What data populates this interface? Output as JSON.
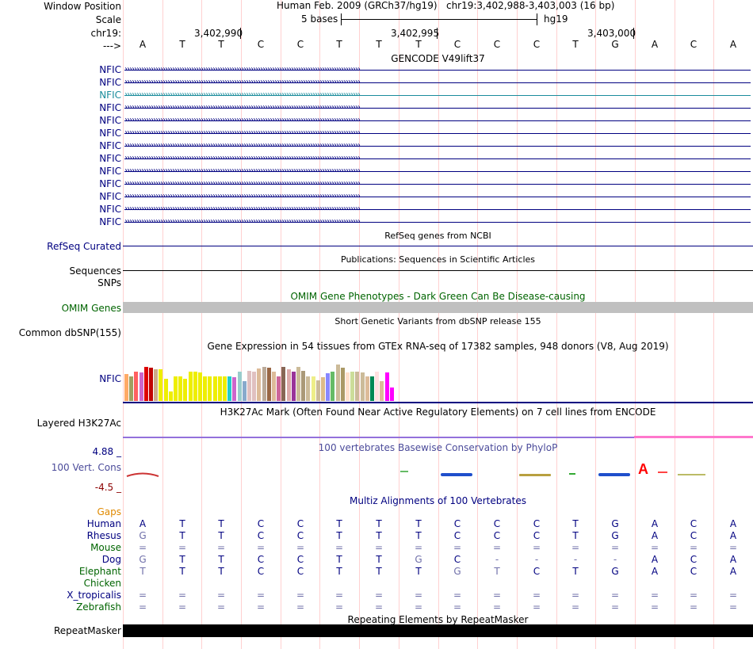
{
  "colors": {
    "navy": "#000080",
    "gencode_highlight": "#1a8c9c",
    "omim_green": "#006400",
    "omim_bar": "#c0c0c0",
    "gaps_orange": "#e08a00",
    "repeat_black": "#000000",
    "h3k27ac_purple": "#9370db",
    "h3k27ac_pink": "#ff77cc",
    "phylop_label": "#4b4b9a",
    "phylop_low": "#8b0000",
    "guide_line": "#ffd0d0"
  },
  "header": {
    "window_position_label": "Window Position",
    "assembly_title": "Human Feb. 2009 (GRCh37/hg19)",
    "position": "chr19:3,402,988-3,403,003 (16 bp)",
    "scale_label": "Scale",
    "scale_text": "5 bases",
    "scale_db": "hg19",
    "chrom_label": "chr19:",
    "strand_label": "--->",
    "coords": [
      "3,402,990",
      "3,402,995",
      "3,403,000"
    ],
    "bases": [
      "A",
      "T",
      "T",
      "C",
      "C",
      "T",
      "T",
      "T",
      "C",
      "C",
      "C",
      "T",
      "G",
      "A",
      "C",
      "A"
    ]
  },
  "gencode": {
    "title": "GENCODE V49lift37",
    "genes": [
      "NFIC",
      "NFIC",
      "NFIC",
      "NFIC",
      "NFIC",
      "NFIC",
      "NFIC",
      "NFIC",
      "NFIC",
      "NFIC",
      "NFIC",
      "NFIC",
      "NFIC"
    ],
    "highlighted_index": 2,
    "arrow_glyphs": "›››››››››››››››››››››››››››››››››››››››››››››››››››››››››››››››››››››››››››››››››››››››››››››››››››"
  },
  "refseq": {
    "title": "RefSeq genes from NCBI",
    "label": "RefSeq Curated"
  },
  "publications": {
    "title": "Publications: Sequences in Scientific Articles",
    "label": "Sequences"
  },
  "snps": {
    "label": "SNPs"
  },
  "omim": {
    "title": "OMIM Gene Phenotypes - Dark Green Can Be Disease-causing",
    "label": "OMIM Genes"
  },
  "dbsnp": {
    "title": "Short Genetic Variants from dbSNP release 155",
    "label": "Common dbSNP(155)"
  },
  "gtex": {
    "title": "Gene Expression in 54 tissues from GTEx RNA-seq of 17382 samples, 948 donors (V8, Aug 2019)",
    "label": "NFIC",
    "values": [
      0.55,
      0.5,
      0.6,
      0.58,
      0.7,
      0.68,
      0.65,
      0.65,
      0.45,
      0.2,
      0.5,
      0.5,
      0.45,
      0.6,
      0.6,
      0.58,
      0.5,
      0.5,
      0.5,
      0.5,
      0.5,
      0.5,
      0.48,
      0.6,
      0.4,
      0.62,
      0.6,
      0.66,
      0.7,
      0.68,
      0.6,
      0.5,
      0.7,
      0.65,
      0.6,
      0.7,
      0.62,
      0.5,
      0.5,
      0.42,
      0.48,
      0.56,
      0.6,
      0.74,
      0.68,
      0.58,
      0.6,
      0.6,
      0.58,
      0.5,
      0.5,
      0.6,
      0.4,
      0.58,
      0.28
    ],
    "colors": [
      "#ffaa66",
      "#a0a060",
      "#ff6060",
      "#cc66cc",
      "#dd0000",
      "#c00000",
      "#ccaa88",
      "#eeee00",
      "#eeee00",
      "#eeee00",
      "#eeee00",
      "#eeee00",
      "#eeee00",
      "#eeee00",
      "#eeee00",
      "#eeee00",
      "#eeee00",
      "#eeee00",
      "#eeee00",
      "#eeee00",
      "#eeee00",
      "#22cccc",
      "#cc66cc",
      "#99cccc",
      "#88aacc",
      "#e0c0c0",
      "#e0c0c0",
      "#ddbb99",
      "#bbaa99",
      "#996644",
      "#ddbb99",
      "#cc6699",
      "#886655",
      "#ddaaaa",
      "#993399",
      "#ccbb99",
      "#aa9977",
      "#ccbb99",
      "#eeee88",
      "#ccbb99",
      "#ddbb88",
      "#8888ff",
      "#66bb66",
      "#ccbb99",
      "#aa9966",
      "#ffe0cc",
      "#ccdd99",
      "#ccbb99",
      "#ccbb99",
      "#ddbb99",
      "#008855",
      "#ffe0e0",
      "#ddbb99",
      "#ff00ff",
      "#ff00ff"
    ]
  },
  "h3k27ac": {
    "title": "H3K27Ac Mark (Often Found Near Active Regulatory Elements) on 7 cell lines from ENCODE",
    "label": "Layered H3K27Ac"
  },
  "phylop": {
    "title": "100 vertebrates Basewise Conservation by PhyloP",
    "label": "100 Vert. Cons",
    "max": "4.88 _",
    "min": "-4.5 _"
  },
  "multiz": {
    "title": "Multiz Alignments of 100 Vertebrates",
    "gaps_label": "Gaps",
    "species": [
      {
        "name": "Human",
        "bases": [
          "A",
          "T",
          "T",
          "C",
          "C",
          "T",
          "T",
          "T",
          "C",
          "C",
          "C",
          "T",
          "G",
          "A",
          "C",
          "A"
        ]
      },
      {
        "name": "Rhesus",
        "bases": [
          "G",
          "T",
          "T",
          "C",
          "C",
          "T",
          "T",
          "T",
          "C",
          "C",
          "C",
          "T",
          "G",
          "A",
          "C",
          "A"
        ]
      },
      {
        "name": "Mouse",
        "bases": [
          "=",
          "=",
          "=",
          "=",
          "=",
          "=",
          "=",
          "=",
          "=",
          "=",
          "=",
          "=",
          "=",
          "=",
          "=",
          "="
        ]
      },
      {
        "name": "Dog",
        "bases": [
          "G",
          "T",
          "T",
          "C",
          "C",
          "T",
          "T",
          "G",
          "C",
          "-",
          "-",
          "-",
          "-",
          "A",
          "C",
          "A"
        ]
      },
      {
        "name": "Elephant",
        "bases": [
          "T",
          "T",
          "T",
          "C",
          "C",
          "T",
          "T",
          "T",
          "G",
          "T",
          "C",
          "T",
          "G",
          "A",
          "C",
          "A"
        ]
      },
      {
        "name": "Chicken",
        "bases": [
          "",
          "",
          "",
          "",
          "",
          "",
          "",
          "",
          "",
          "",
          "",
          "",
          "",
          "",
          "",
          ""
        ]
      },
      {
        "name": "X_tropicalis",
        "bases": [
          "=",
          "=",
          "=",
          "=",
          "=",
          "=",
          "=",
          "=",
          "=",
          "=",
          "=",
          "=",
          "=",
          "=",
          "=",
          "="
        ]
      },
      {
        "name": "Zebrafish",
        "bases": [
          "=",
          "=",
          "=",
          "=",
          "=",
          "=",
          "=",
          "=",
          "=",
          "=",
          "=",
          "=",
          "=",
          "=",
          "=",
          "="
        ]
      }
    ]
  },
  "repeatmasker": {
    "title": "Repeating Elements by RepeatMasker",
    "label": "RepeatMasker"
  }
}
